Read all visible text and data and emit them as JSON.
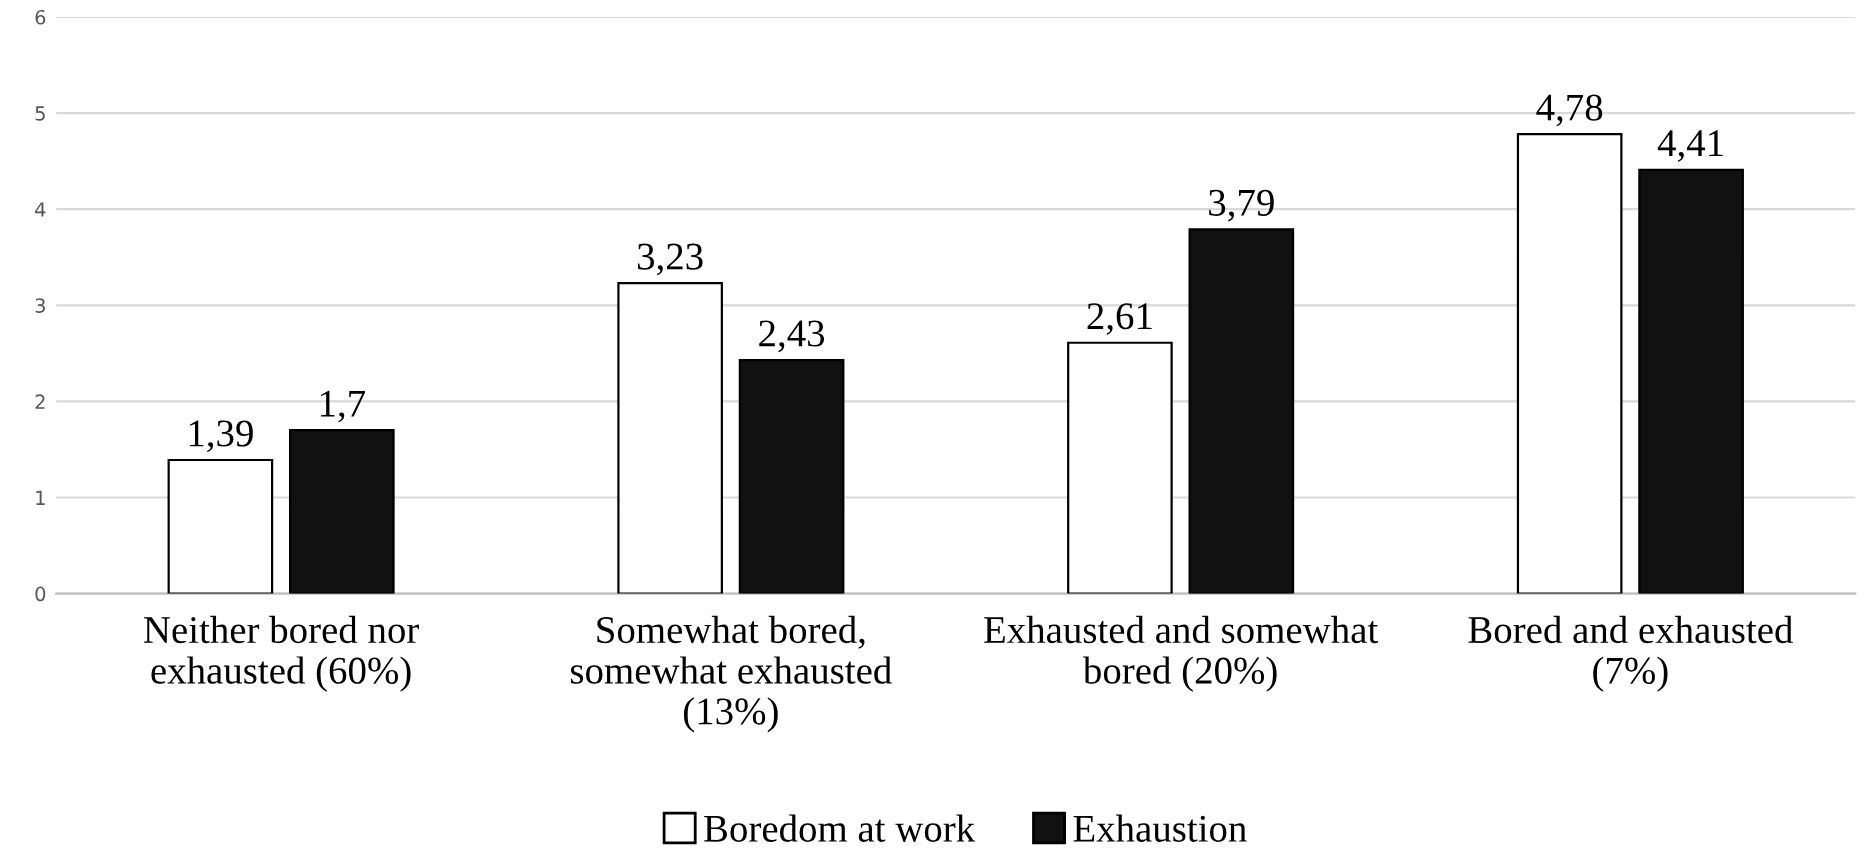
{
  "chart_data": {
    "type": "bar",
    "categories": [
      "Neither bored nor\nexhausted (60%)",
      "Somewhat bored,\nsomewhat exhausted\n(13%)",
      "Exhausted and somewhat\nbored (20%)",
      "Bored and exhausted\n(7%)"
    ],
    "series": [
      {
        "name": "Boredom at work",
        "color": "#ffffff",
        "values": [
          1.39,
          3.23,
          2.61,
          4.78
        ],
        "value_labels": [
          "1,39",
          "3,23",
          "2,61",
          "4,78"
        ]
      },
      {
        "name": "Exhaustion",
        "color": "#111111",
        "values": [
          1.7,
          2.43,
          3.79,
          4.41
        ],
        "value_labels": [
          "1,7",
          "2,43",
          "3,79",
          "4,41"
        ]
      }
    ],
    "ylim": [
      0,
      6
    ],
    "yticks": [
      0,
      1,
      2,
      3,
      4,
      5,
      6
    ],
    "grid": "y",
    "legend": "bottom"
  }
}
